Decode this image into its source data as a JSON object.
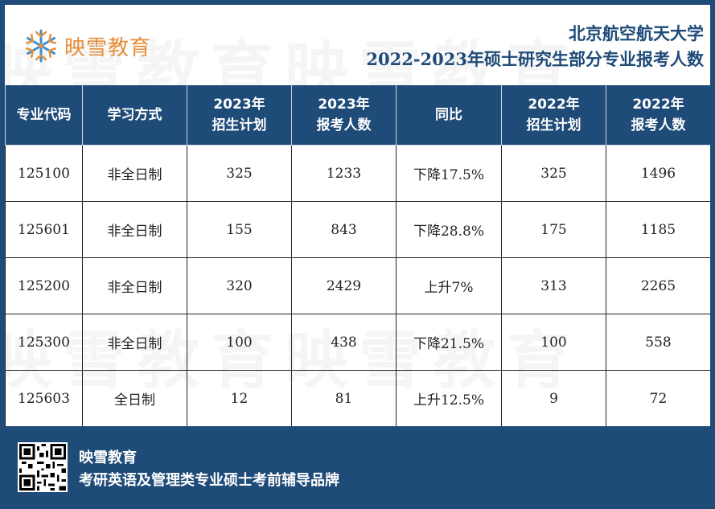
{
  "header": {
    "logo_text": "映雪教育",
    "title_line1": "北京航空航天大学",
    "title_line2": "2022-2023年硕士研究生部分专业报考人数"
  },
  "table": {
    "columns": [
      {
        "line1": "专业代码",
        "line2": ""
      },
      {
        "line1": "学习方式",
        "line2": ""
      },
      {
        "line1": "2023年",
        "line2": "招生计划"
      },
      {
        "line1": "2023年",
        "line2": "报考人数"
      },
      {
        "line1": "同比",
        "line2": ""
      },
      {
        "line1": "2022年",
        "line2": "招生计划"
      },
      {
        "line1": "2022年",
        "line2": "报考人数"
      }
    ],
    "rows": [
      [
        "125100",
        "非全日制",
        "325",
        "1233",
        "下降17.5%",
        "325",
        "1496"
      ],
      [
        "125601",
        "非全日制",
        "155",
        "843",
        "下降28.8%",
        "175",
        "1185"
      ],
      [
        "125200",
        "非全日制",
        "320",
        "2429",
        "上升7%",
        "313",
        "2265"
      ],
      [
        "125300",
        "非全日制",
        "100",
        "438",
        "下降21.5%",
        "100",
        "558"
      ],
      [
        "125603",
        "全日制",
        "12",
        "81",
        "上升12.5%",
        "9",
        "72"
      ]
    ]
  },
  "footer": {
    "brand": "映雪教育",
    "slogan": "考研英语及管理类专业硕士考前辅导品牌"
  },
  "watermark_text": "映雪教育映雪教育",
  "colors": {
    "navy": "#1f4b78",
    "logo_orange": "#e58f3a",
    "logo_blue": "#3a8fd1"
  },
  "icons": {
    "logo": "snowflake-logo-icon",
    "qr": "qr-code-icon"
  }
}
